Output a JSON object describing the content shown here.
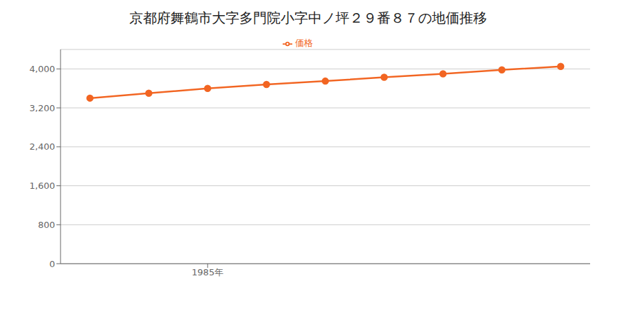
{
  "chart_data": {
    "type": "line",
    "title": "京都府舞鶴市大字多門院小字中ノ坪２９番８７の地価推移",
    "x": [
      1983,
      1984,
      1985,
      1986,
      1987,
      1988,
      1989,
      1990,
      1991
    ],
    "series": [
      {
        "name": "価格",
        "color": "#f26522",
        "marker": "circle",
        "values": [
          3400,
          3500,
          3600,
          3680,
          3750,
          3830,
          3900,
          3980,
          4050
        ]
      }
    ],
    "xlim": [
      1982.5,
      1991.5
    ],
    "xticks": [
      {
        "value": 1985,
        "label": "1985年"
      }
    ],
    "ylim": [
      0,
      4400
    ],
    "yticks": [
      0,
      800,
      {
        "value": 1600,
        "label": "1,600"
      },
      {
        "value": 2400,
        "label": "2,400"
      },
      {
        "value": 3200,
        "label": "3,200"
      },
      {
        "value": 4000,
        "label": "4,000"
      }
    ],
    "grid": true,
    "legend": "top"
  }
}
